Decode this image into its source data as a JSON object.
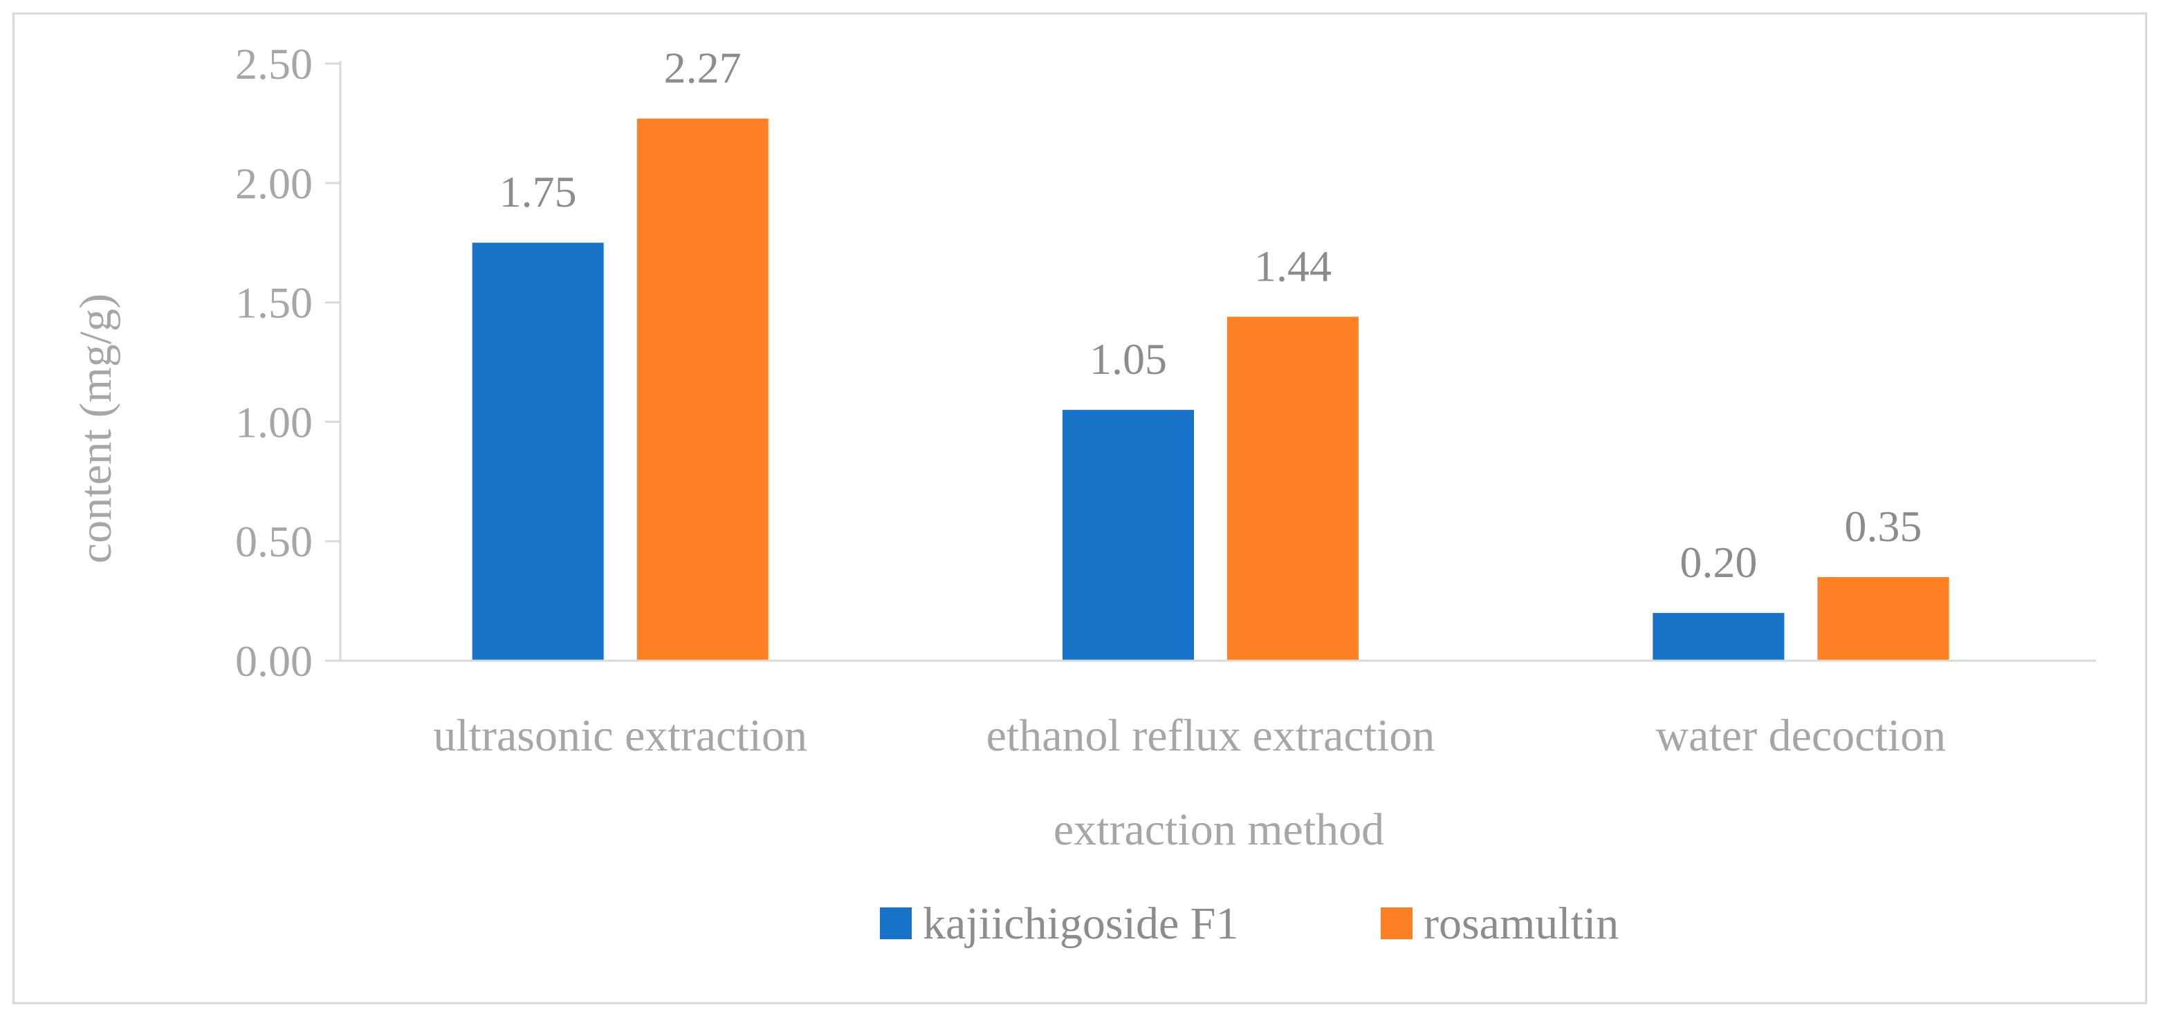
{
  "chart_data": {
    "type": "bar",
    "title": "",
    "xlabel": "extraction method",
    "ylabel": "content (mg/g)",
    "categories": [
      "ultrasonic extraction",
      "ethanol reflux extraction",
      "water decoction"
    ],
    "series": [
      {
        "name": "kajiichigoside F1",
        "color": "#1872c8",
        "values": [
          1.75,
          1.05,
          0.2
        ]
      },
      {
        "name": "rosamultin",
        "color": "#fd8025",
        "values": [
          2.27,
          1.44,
          0.35
        ]
      }
    ],
    "ylim": [
      0,
      2.5
    ],
    "yticks": [
      "0.00",
      "0.50",
      "1.00",
      "1.50",
      "2.00",
      "2.50"
    ],
    "data_labels": true,
    "grid": false,
    "legend_position": "bottom"
  }
}
